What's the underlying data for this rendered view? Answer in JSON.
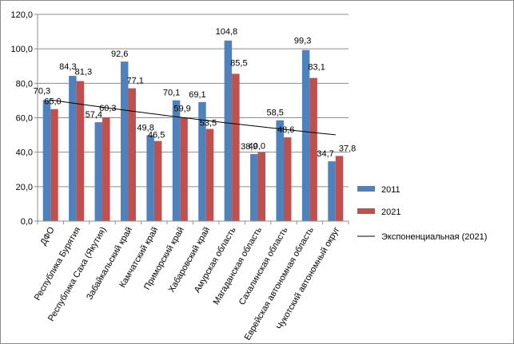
{
  "chart_data": {
    "type": "bar",
    "categories": [
      "ДФО",
      "Республика Бурятия",
      "Республика Саха (Якутия)",
      "Забайкальский край",
      "Камчатский край",
      "Приморский край",
      "Хабаровский край",
      "Амурская область",
      "Магаданская область",
      "Сахалинская область",
      "Еврейская автономная область",
      "Чукотский автономный округ"
    ],
    "series": [
      {
        "name": "2011",
        "color": "#4f81bd",
        "values": [
          70.3,
          84.3,
          57.4,
          92.6,
          49.8,
          70.1,
          69.1,
          104.8,
          38.9,
          58.5,
          99.3,
          34.7
        ],
        "labels": [
          "70,3",
          "84,3",
          "57,4",
          "92,6",
          "49,8",
          "70,1",
          "69,1",
          "104,8",
          "38,9",
          "58,5",
          "99,3",
          "34,7"
        ]
      },
      {
        "name": "2021",
        "color": "#c0504d",
        "values": [
          65.0,
          81.3,
          60.3,
          77.1,
          46.5,
          59.9,
          53.5,
          85.5,
          40.0,
          48.6,
          83.1,
          37.8
        ],
        "labels": [
          "65,0",
          "81,3",
          "60,3",
          "77,1",
          "46,5",
          "59,9",
          "53,5",
          "85,5",
          "40,0",
          "48,6",
          "83,1",
          "37,8"
        ]
      }
    ],
    "trendline": {
      "name": "Экспоненциальная (2021)",
      "type": "exponential",
      "of_series": "2021",
      "color": "#000000"
    },
    "y_ticks": [
      "0,0",
      "20,0",
      "40,0",
      "60,0",
      "80,0",
      "100,0",
      "120,0"
    ],
    "ylim": [
      0,
      120
    ],
    "grid": true,
    "legend_position": "right"
  }
}
